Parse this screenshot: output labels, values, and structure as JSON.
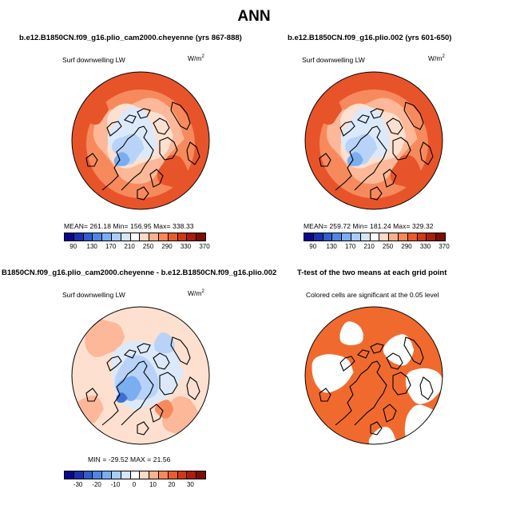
{
  "main_title": "ANN",
  "panels": {
    "p1": {
      "title": "b.e12.B1850CN.f09_g16.plio_cam2000.cheyenne (yrs 867-888)",
      "var_label": "Surf downwelling LW",
      "units": "W/m",
      "units_sup": "2",
      "stats": "MEAN= 261.18   Min= 156.95   Max= 338.33"
    },
    "p2": {
      "title": "b.e12.B1850CN.f09_g16.plio.002 (yrs 601-650)",
      "var_label": "Surf downwelling LW",
      "units": "W/m",
      "units_sup": "2",
      "stats": "MEAN= 259.72   Min= 181.24   Max= 329.32"
    },
    "p3": {
      "title": "B1850CN.f09_g16.plio_cam2000.cheyenne - b.e12.B1850CN.f09_g16.plio.002",
      "var_label": "Surf downwelling LW",
      "units": "W/m",
      "units_sup": "2",
      "stats": "MIN = -29.52  MAX =  21.56"
    },
    "p4": {
      "title": "T-test of the two means at each grid point",
      "subtitle": "Colored cells are significant at the 0.05 level"
    }
  },
  "colorbar_abs": {
    "colors": [
      "#08088c",
      "#1a2fb0",
      "#2f5ccf",
      "#4f86e3",
      "#7aaef0",
      "#a8cef8",
      "#d4e6fb",
      "#ffffff",
      "#fdd9c6",
      "#fbb090",
      "#f88858",
      "#ec5b2c",
      "#cf3a14",
      "#a91e0a",
      "#7d0c04"
    ],
    "ticks": [
      "90",
      "130",
      "170",
      "210",
      "250",
      "290",
      "330",
      "370"
    ]
  },
  "colorbar_diff": {
    "colors": [
      "#08088c",
      "#1a2fb0",
      "#2f5ccf",
      "#4f86e3",
      "#7aaef0",
      "#a8cef8",
      "#d4e6fb",
      "#ffffff",
      "#fdd9c6",
      "#fbb090",
      "#f88858",
      "#ec5b2c",
      "#cf3a14",
      "#a91e0a",
      "#7d0c04"
    ],
    "ticks": [
      "-30",
      "-20",
      "-10",
      "0",
      "10",
      "20",
      "30"
    ]
  },
  "map_colors": {
    "warm_dark": "#e8542a",
    "warm_mid": "#f78a5c",
    "warm_light": "#fcb898",
    "warm_pale": "#fde0d0",
    "cool_pale": "#dce9fb",
    "cool_light": "#b8d3f7",
    "cool_mid": "#7aaef0",
    "cool_dark": "#3f6fd6",
    "sig_orange": "#f06a2e"
  }
}
